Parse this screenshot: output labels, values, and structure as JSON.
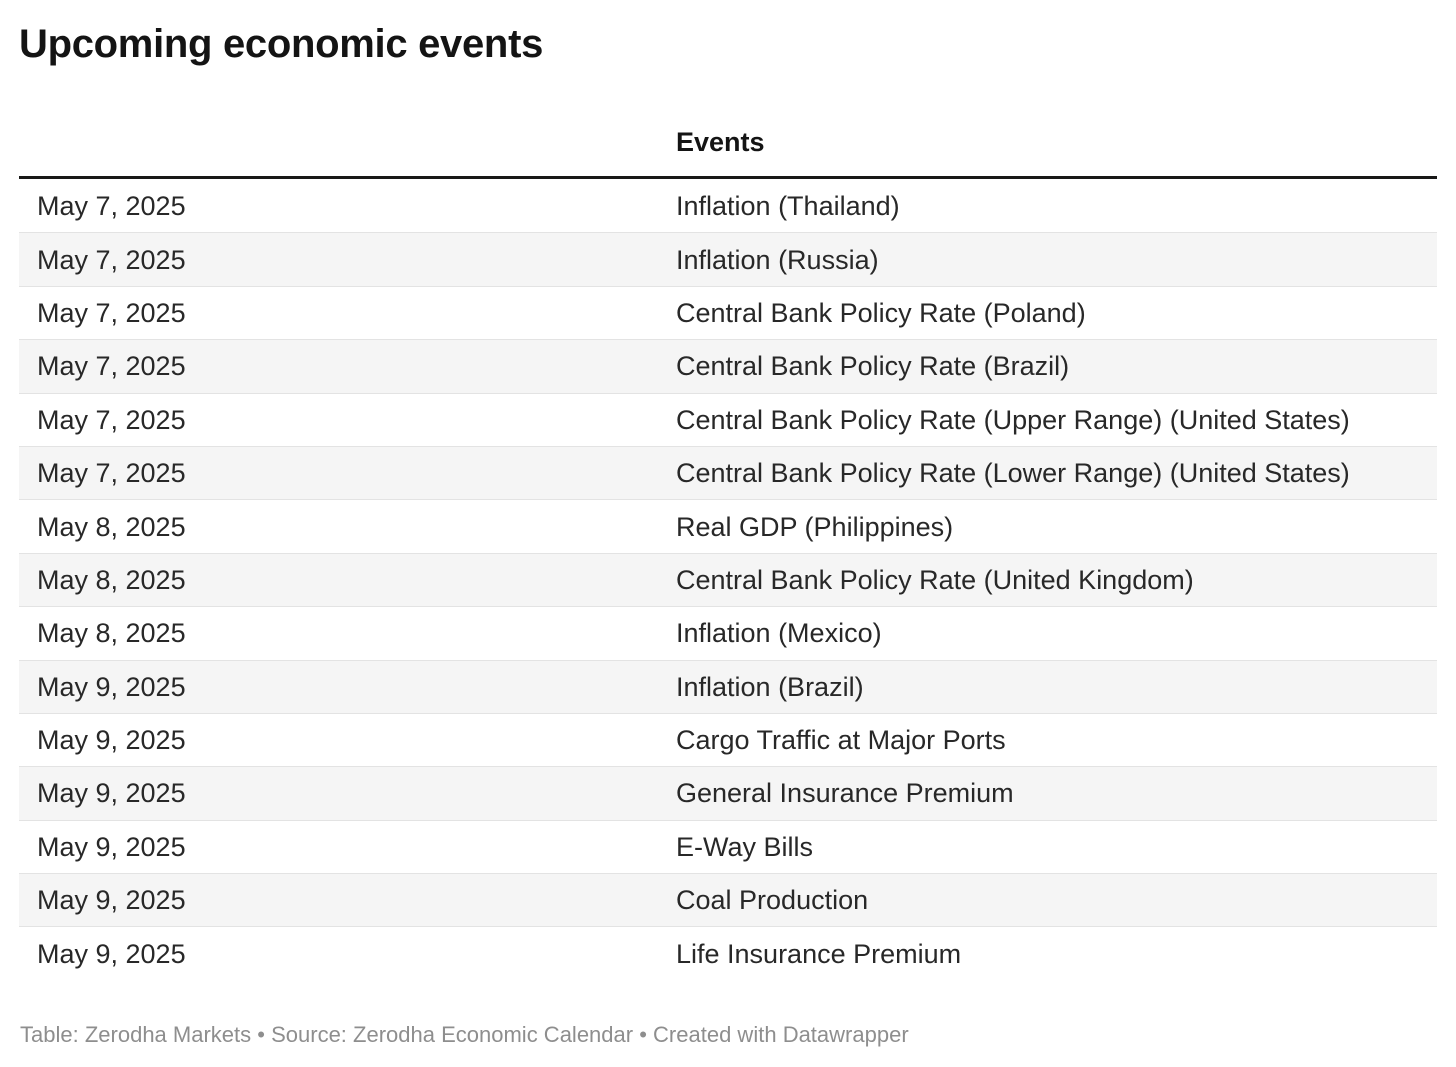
{
  "header": {
    "title": "Upcoming economic events"
  },
  "table": {
    "date_column_label": "",
    "events_column_label": "Events"
  },
  "chart_data": {
    "type": "table",
    "title": "Upcoming economic events",
    "columns": [
      "",
      "Events"
    ],
    "rows": [
      [
        "May 7, 2025",
        "Inflation (Thailand)"
      ],
      [
        "May 7, 2025",
        "Inflation (Russia)"
      ],
      [
        "May 7, 2025",
        "Central Bank Policy Rate (Poland)"
      ],
      [
        "May 7, 2025",
        "Central Bank Policy Rate (Brazil)"
      ],
      [
        "May 7, 2025",
        "Central Bank Policy Rate (Upper Range) (United States)"
      ],
      [
        "May 7, 2025",
        "Central Bank Policy Rate (Lower Range) (United States)"
      ],
      [
        "May 8, 2025",
        "Real GDP (Philippines)"
      ],
      [
        "May 8, 2025",
        "Central Bank Policy Rate (United Kingdom)"
      ],
      [
        "May 8, 2025",
        "Inflation (Mexico)"
      ],
      [
        "May 9, 2025",
        "Inflation (Brazil)"
      ],
      [
        "May 9, 2025",
        "Cargo Traffic at Major Ports"
      ],
      [
        "May 9, 2025",
        "General Insurance Premium"
      ],
      [
        "May 9, 2025",
        "E-Way Bills"
      ],
      [
        "May 9, 2025",
        "Coal Production"
      ],
      [
        "May 9, 2025",
        "Life Insurance Premium"
      ]
    ],
    "layout_hints": {
      "striped_rows": true,
      "header_rule": "double-line",
      "grid": "off"
    }
  },
  "footer": {
    "table_label": "Table:",
    "table_credit": "Zerodha Markets",
    "bullet1": "•",
    "source_label": "Source:",
    "source_credit": "Zerodha Economic Calendar",
    "bullet2": "•",
    "created_label": "Created with",
    "created_credit": "Datawrapper"
  },
  "colors": {
    "text": "#282828",
    "title": "#141414",
    "stripe": "#f5f5f5",
    "rule": "#181817",
    "row_divider": "#e3e3e3",
    "footer": "#8e8e8e"
  }
}
